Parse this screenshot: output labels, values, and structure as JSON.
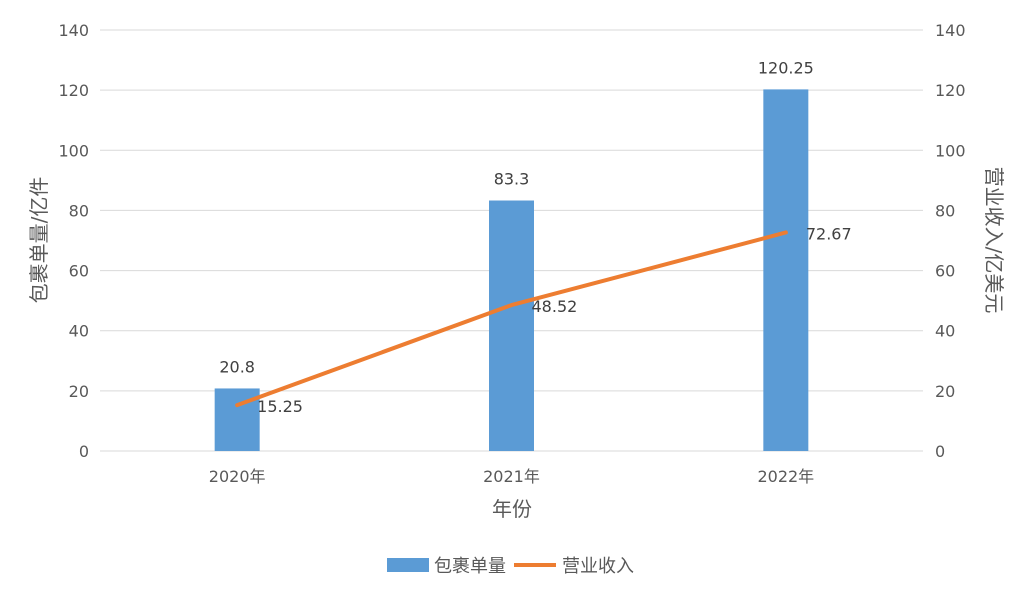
{
  "chart_data": {
    "type": "bar+line",
    "categories": [
      "2020年",
      "2021年",
      "2022年"
    ],
    "series": [
      {
        "name": "包裹单量",
        "type": "bar",
        "axis": "left",
        "values": [
          20.8,
          83.3,
          120.25
        ],
        "data_labels": [
          "20.8",
          "83.3",
          "120.25"
        ],
        "color": "#5B9BD5"
      },
      {
        "name": "营业收入",
        "type": "line",
        "axis": "right",
        "values": [
          15.25,
          48.52,
          72.67
        ],
        "data_labels": [
          "15.25",
          "48.52",
          "72.67"
        ],
        "color": "#ED7D31"
      }
    ],
    "xlabel": "年份",
    "ylabel_left": "包裹单量/亿件",
    "ylabel_right": "营业收入/亿美元",
    "ylim_left": [
      0,
      140
    ],
    "ylim_right": [
      0,
      140
    ],
    "yticks_left": [
      "0",
      "20",
      "40",
      "60",
      "80",
      "100",
      "120",
      "140"
    ],
    "yticks_right": [
      "0",
      "20",
      "40",
      "60",
      "80",
      "100",
      "120",
      "140"
    ],
    "grid": true,
    "legend_position": "bottom",
    "gridline_color": "#D9D9D9"
  }
}
